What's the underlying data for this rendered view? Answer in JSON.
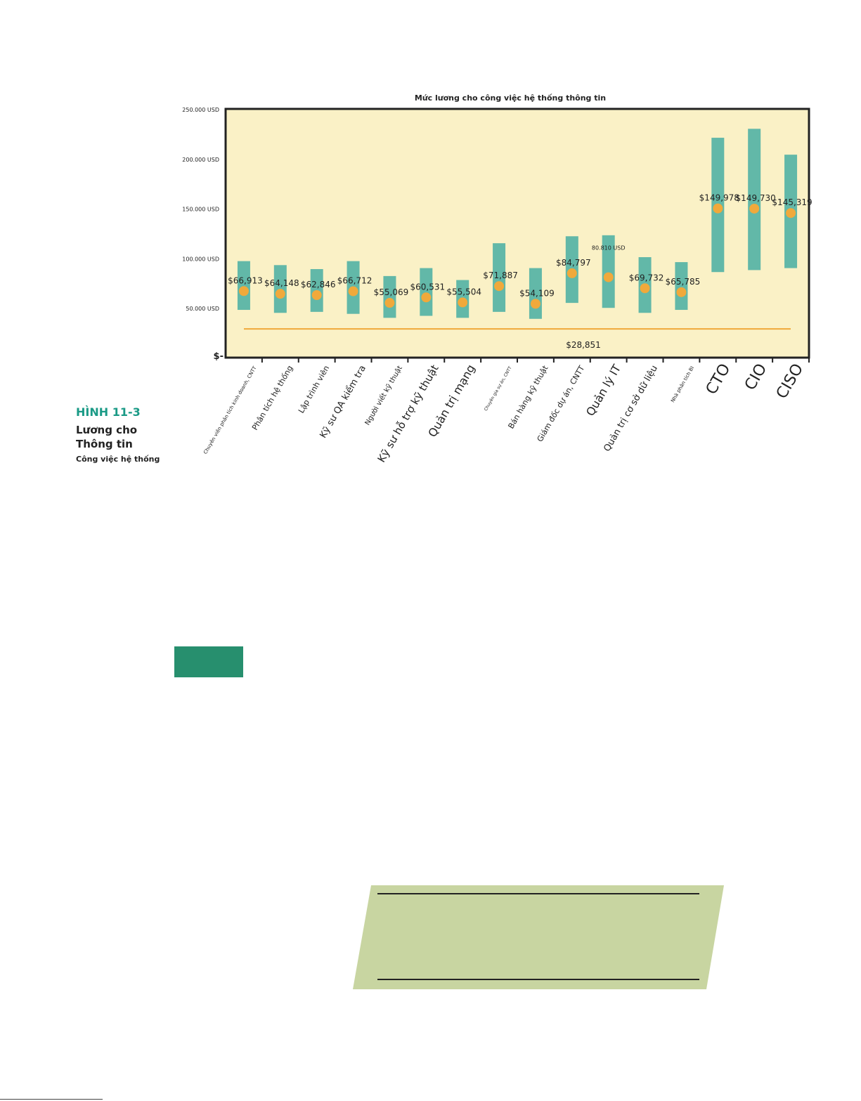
{
  "figure": {
    "label": "HÌNH 11-3",
    "title_line1": "Lương cho",
    "title_line2": "Thông tin",
    "subtitle": "Công việc hệ thống"
  },
  "chart_data": {
    "type": "range-bar-with-points",
    "title": "Mức lương cho công việc hệ thống thông tin",
    "xlabel": "",
    "ylabel": "",
    "ylim": [
      0,
      250000
    ],
    "y_ticks": [
      {
        "value": 250000,
        "label": "250.000 USD"
      },
      {
        "value": 200000,
        "label": "200.000 USD"
      },
      {
        "value": 150000,
        "label": "150.000 USD"
      },
      {
        "value": 100000,
        "label": "100.000 USD"
      },
      {
        "value": 50000,
        "label": "50.000 USD"
      },
      {
        "value": 0,
        "label": "$-"
      }
    ],
    "categories": [
      "Chuyên viên phân tích kinh doanh, CNTT",
      "Phân tích hệ thống",
      "Lập trình viên",
      "Kỹ sư QA kiểm tra",
      "Người viết kỹ thuật",
      "Kỹ sư hỗ trợ kỹ thuật",
      "Quản trị mạng",
      "Chuyên gia sự án, CNTT",
      "Bán hàng kỹ thuật",
      "Giám đốc dự án, CNTT",
      "Quản lý IT",
      "Quản trị cơ sở dữ liệu",
      "Nhà phân tích BI",
      "CTO",
      "CIO",
      "CISO"
    ],
    "label_sizes": [
      7,
      11,
      11,
      13,
      10,
      15,
      16,
      6,
      11,
      11,
      16,
      13,
      7,
      22,
      22,
      22
    ],
    "ranges": [
      [
        48000,
        97000
      ],
      [
        45000,
        93000
      ],
      [
        46000,
        89000
      ],
      [
        44000,
        97000
      ],
      [
        40000,
        82000
      ],
      [
        42000,
        90000
      ],
      [
        40000,
        78000
      ],
      [
        46000,
        115000
      ],
      [
        39000,
        90000
      ],
      [
        55000,
        122000
      ],
      [
        50000,
        123000
      ],
      [
        45000,
        101000
      ],
      [
        48000,
        96000
      ],
      [
        86000,
        221000
      ],
      [
        88000,
        230000
      ],
      [
        90000,
        204000
      ]
    ],
    "averages": [
      66913,
      64148,
      62846,
      66712,
      55069,
      60531,
      55504,
      71887,
      54109,
      84797,
      80810,
      69732,
      65785,
      149978,
      149730,
      145319
    ],
    "average_labels": [
      "$66,913",
      "$64,148",
      "$62,846",
      "$66,712",
      "$55,069",
      "$60,531",
      "$55,504",
      "$71,887",
      "$54,109",
      "$84,797",
      "80.810 USD",
      "$69,732",
      "$65,785",
      "$149,978",
      "$149,730",
      "$145,319"
    ],
    "reference_line": {
      "value": 28851,
      "label": "$28,851"
    },
    "colors": {
      "plot_background": "#faf1c6",
      "range_bar": "#62b8a8",
      "average_dot": "#f0a93b",
      "reference_line": "#f0a93b",
      "frame": "#222222"
    },
    "grid": false,
    "legend": "none"
  },
  "decor": {
    "accent_block_color": "#278f6e",
    "parallelogram_color": "#c8d5a1"
  }
}
